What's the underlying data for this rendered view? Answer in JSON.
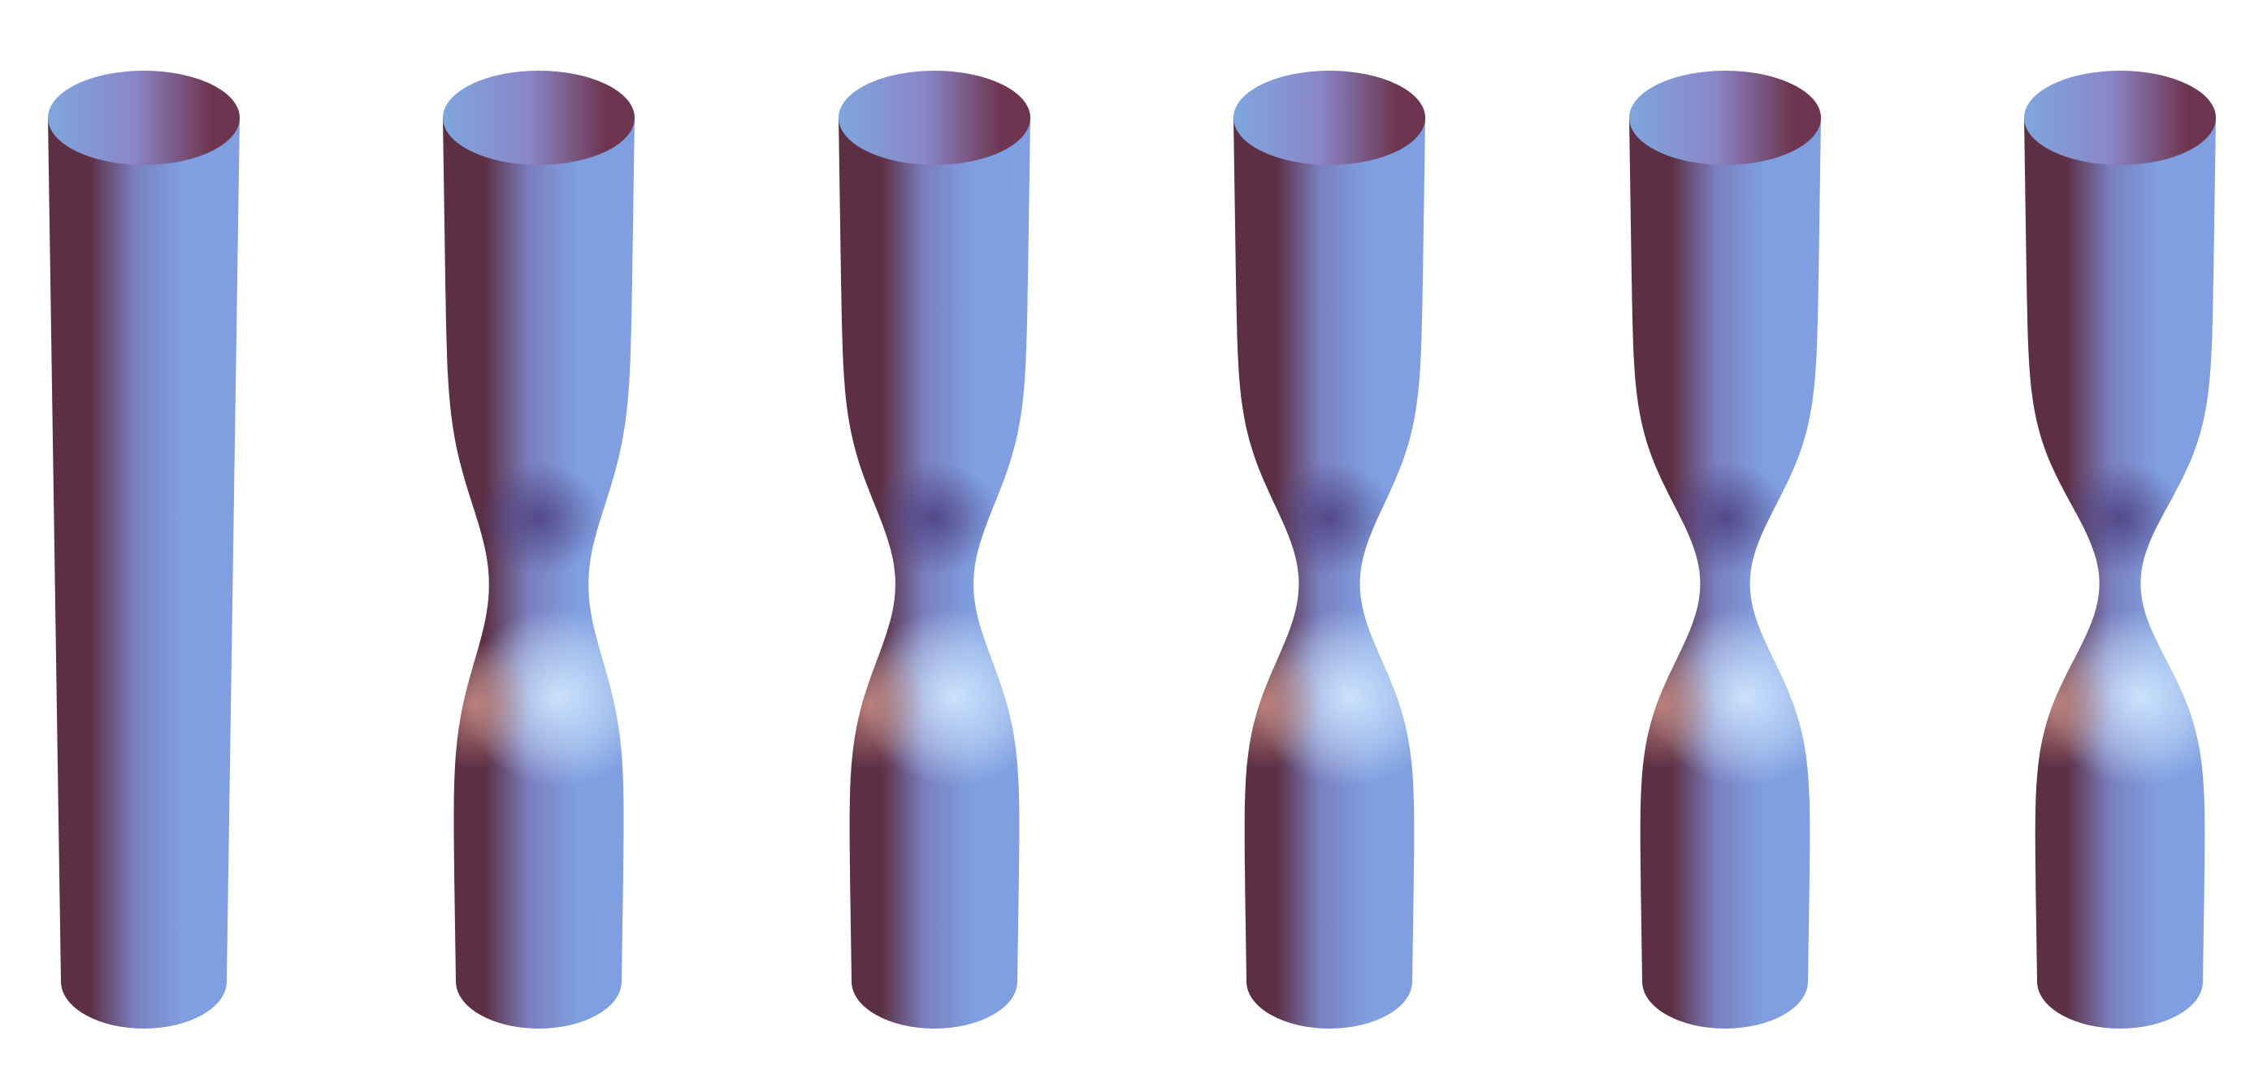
{
  "figure": {
    "count": 6,
    "tubes": [
      {
        "id": "tube-1",
        "neck": 0.0
      },
      {
        "id": "tube-2",
        "neck": 0.55
      },
      {
        "id": "tube-3",
        "neck": 0.7
      },
      {
        "id": "tube-4",
        "neck": 0.82
      },
      {
        "id": "tube-5",
        "neck": 0.9
      },
      {
        "id": "tube-6",
        "neck": 0.96
      }
    ],
    "colors": {
      "background": "#ffffff",
      "dark_side": "#5c2f44",
      "mid_side": "#7a7fbf",
      "light_side": "#7f9fe0",
      "cap_dark": "#6e3550",
      "cap_light": "#7fa6dd",
      "bulge_highlight": "#cfe6ff",
      "bulge_warm": "#c98a80",
      "neck_shadow": "#4a3a7a"
    }
  }
}
